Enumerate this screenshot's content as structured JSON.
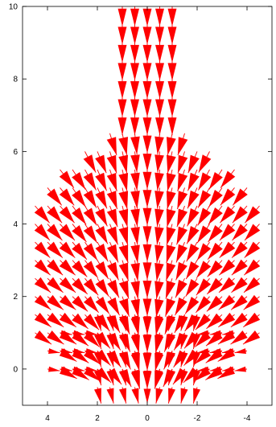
{
  "chart_data": {
    "type": "vector-field",
    "title": "",
    "xlabel": "",
    "ylabel": "",
    "xlim": [
      5,
      -5
    ],
    "ylim": [
      -1,
      10
    ],
    "x_ticks": [
      4,
      2,
      0,
      -2,
      -4
    ],
    "y_ticks": [
      0,
      2,
      4,
      6,
      8,
      10
    ],
    "x_tick_labels": [
      "4",
      "2",
      "0",
      "-2",
      "-4"
    ],
    "y_tick_labels": [
      "0",
      "2",
      "4",
      "6",
      "8",
      "10"
    ],
    "grid": false,
    "arrow_color": "#ff0000",
    "columns": {
      "outer_x": [
        4.5,
        4,
        3.5,
        3,
        2.5,
        2,
        1.5,
        1,
        0.5,
        0,
        -0.5,
        -1,
        -1.5,
        -2,
        -2.5,
        -3,
        -3.5,
        -4,
        -4.5
      ],
      "core_x": [
        1,
        0.5,
        0,
        -0.5,
        -1
      ],
      "base_x": [
        2,
        1.5,
        1,
        0.5,
        0,
        -0.5,
        -1,
        -1.5,
        -2
      ]
    },
    "rows": {
      "field_y": [
        0,
        0.5,
        1,
        1.5,
        2,
        2.5,
        3,
        3.5,
        4,
        4.5,
        5,
        5.5,
        6,
        6.5
      ],
      "core_y": [
        7,
        7.5,
        8,
        8.5,
        9,
        9.5,
        10
      ],
      "base_y": [
        -0.5,
        0,
        0.5,
        1,
        1.5
      ]
    },
    "field": {
      "description_source": "tick labels only",
      "core_direction": [
        0,
        -1
      ],
      "core_length": 0.55
    }
  }
}
